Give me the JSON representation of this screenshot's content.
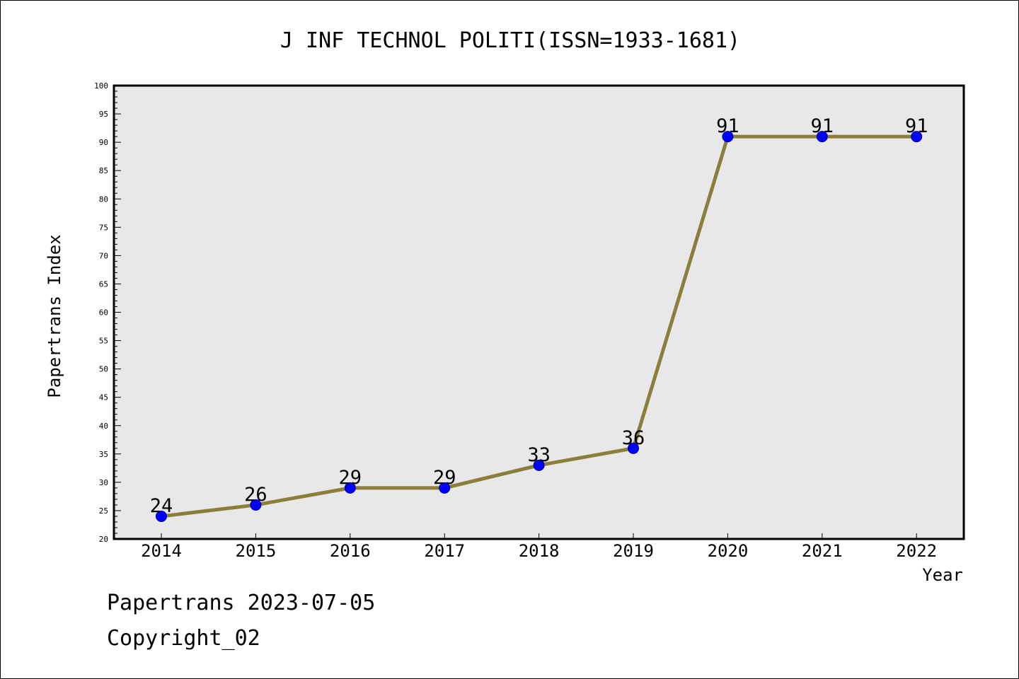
{
  "chart_data": {
    "type": "line",
    "title": "J INF TECHNOL POLITI(ISSN=1933-1681)",
    "xlabel": "Year",
    "ylabel": "Papertrans Index",
    "categories": [
      "2014",
      "2015",
      "2016",
      "2017",
      "2018",
      "2019",
      "2020",
      "2021",
      "2022"
    ],
    "values": [
      24,
      26,
      29,
      29,
      33,
      36,
      91,
      91,
      91
    ],
    "data_labels": [
      "24",
      "26",
      "29",
      "29",
      "33",
      "36",
      "91",
      "91",
      "91"
    ],
    "ylim": [
      20,
      100
    ],
    "yticks": [
      "20",
      "25",
      "30",
      "35",
      "40",
      "45",
      "50",
      "55",
      "60",
      "65",
      "70",
      "75",
      "80",
      "85",
      "90",
      "95",
      "100"
    ],
    "grid": false,
    "colors": {
      "line": "#8b7d3a",
      "marker": "#0000ff",
      "plot_background": "#e8e8e8"
    }
  },
  "footer": {
    "date_text": "Papertrans 2023-07-05",
    "copyright_text": "Copyright_02"
  }
}
